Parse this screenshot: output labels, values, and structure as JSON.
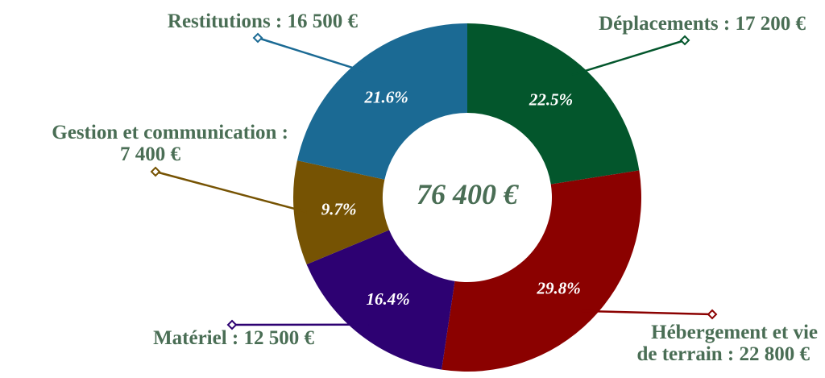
{
  "chart_data": {
    "type": "pie",
    "total_label": "76 400 €",
    "slices": [
      {
        "label_lines": [
          "Déplacements : 17 200 €"
        ],
        "value": 17200,
        "percent_label": "22.5%",
        "color": "#03562c"
      },
      {
        "label_lines": [
          "Hébergement et vie",
          "de terrain : 22 800 €"
        ],
        "value": 22800,
        "percent_label": "29.8%",
        "color": "#8b0100"
      },
      {
        "label_lines": [
          "Matériel : 12 500 €"
        ],
        "value": 12500,
        "percent_label": "16.4%",
        "color": "#2d0172"
      },
      {
        "label_lines": [
          "Gestion et communication :",
          "7 400 €"
        ],
        "value": 7400,
        "percent_label": "9.7%",
        "color": "#765303"
      },
      {
        "label_lines": [
          "Restitutions : 16 500 €"
        ],
        "value": 16500,
        "percent_label": "21.6%",
        "color": "#1b6a94"
      }
    ]
  }
}
